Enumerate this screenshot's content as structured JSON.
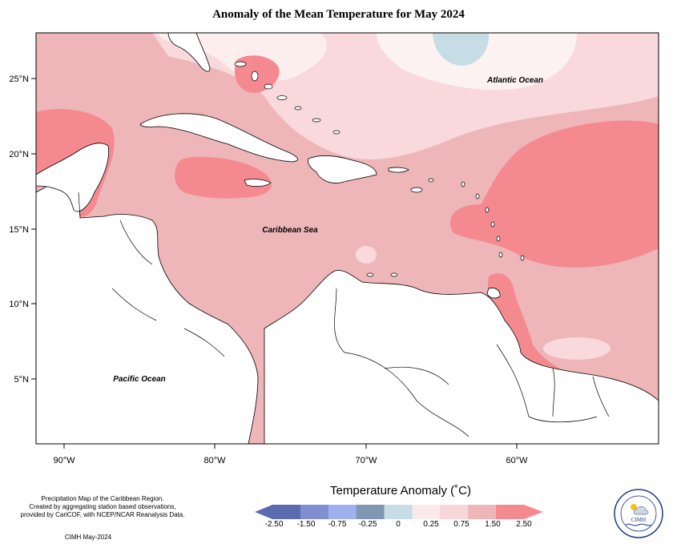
{
  "title": "Anomaly of the Mean Temperature for May 2024",
  "map_labels": {
    "atlantic": "Atlantic Ocean",
    "caribbean": "Caribbean Sea",
    "pacific": "Pacific Ocean"
  },
  "axes": {
    "lon_ticks": [
      "90°W",
      "80°W",
      "70°W",
      "60°W"
    ],
    "lat_ticks": [
      "25°N",
      "20°N",
      "15°N",
      "10°N",
      "5°N"
    ]
  },
  "footer": {
    "line1": "Precipitation Map of the Caribbean Region.",
    "line2": "Created by aggregating station based observations,",
    "line3": "provided by CariCOF, with NCEP/NCAR Reanalysis Data.",
    "credit": "CIMH May-2024"
  },
  "legend": {
    "title": "Temperature Anomaly (˚C)",
    "ticks": [
      "-2.50",
      "-1.50",
      "-0.75",
      "-0.25",
      "0",
      "0.25",
      "0.75",
      "1.50",
      "2.50"
    ],
    "colors": [
      "#5b6bb0",
      "#7f8fd0",
      "#9fb0ee",
      "#7f97b0",
      "#c6dde6",
      "#fbeaea",
      "#f7d6d9",
      "#efb6b9",
      "#f48a90"
    ],
    "end_low": "#5b6bb0",
    "end_high": "#f48a90"
  },
  "logo": {
    "name": "CIMH",
    "ring_text": "Caribbean Institute for Meteorology and Hydrology"
  }
}
